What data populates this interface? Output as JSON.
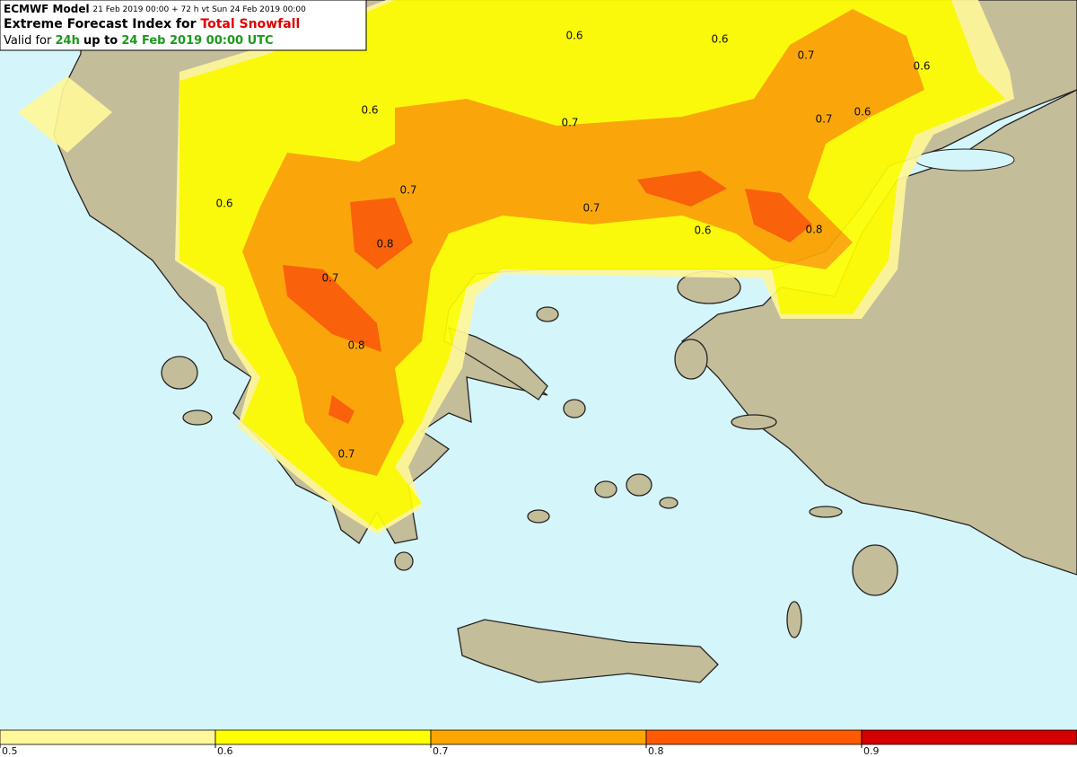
{
  "header": {
    "model": "ECMWF Model",
    "run": "21 Feb 2019 00:00 + 72 h vt Sun 24 Feb 2019 00:00",
    "title_prefix": "Extreme Forecast Index for",
    "title_param": "Total Snowfall",
    "valid_prefix": "Valid for",
    "valid_period": "24h",
    "valid_mid": "up to",
    "valid_time": "24 Feb 2019 00:00 UTC"
  },
  "contour_labels": [
    0.6,
    0.6,
    0.6,
    0.6,
    0.6,
    0.6,
    0.6,
    0.7,
    0.7,
    0.7,
    0.7,
    0.7,
    0.7,
    0.7,
    0.8,
    0.8,
    0.8
  ],
  "colorbar": {
    "range": [
      0.5,
      1
    ],
    "ticks": [
      0.5,
      0.6,
      0.7,
      0.8,
      0.9
    ],
    "colors": [
      "#fff79a",
      "#ffff00",
      "#ffa500",
      "#ff5a00",
      "#d40000"
    ]
  }
}
